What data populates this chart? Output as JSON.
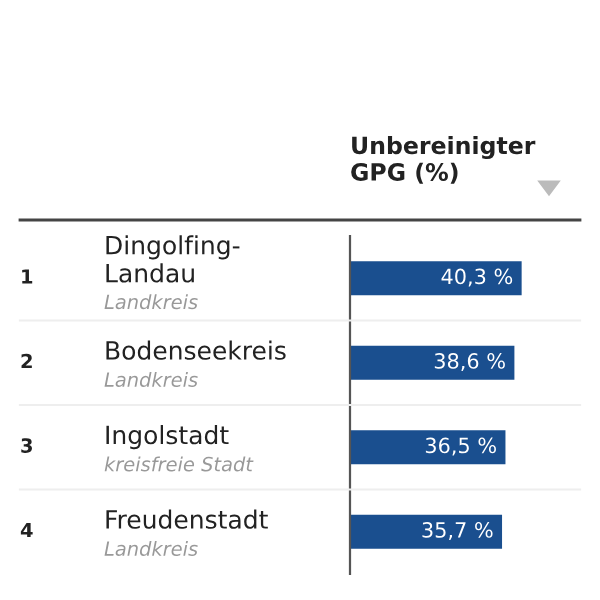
{
  "chart_data": {
    "type": "bar",
    "orientation": "horizontal",
    "title": "Unbereinigter GPG (%)",
    "categories": [
      "Dingolfing-Landau",
      "Bodenseekreis",
      "Ingolstadt",
      "Freudenstadt"
    ],
    "values": [
      40.3,
      38.6,
      36.5,
      35.7
    ],
    "value_labels": [
      "40,3 %",
      "38,6 %",
      "36,5 %",
      "35,7 %"
    ],
    "color": "#1a4f8f",
    "annotations": [
      "1",
      "2",
      "3",
      "4",
      "Landkreis",
      "Landkreis",
      "kreisfreie Stadt",
      "Landkreis"
    ]
  }
}
